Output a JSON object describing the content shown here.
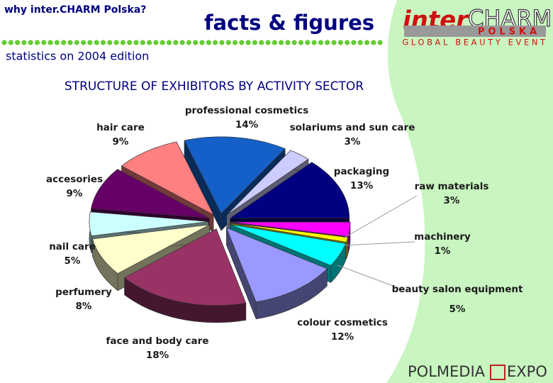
{
  "header": {
    "kicker": "why inter.CHARM Polska?",
    "title": "facts & figures",
    "note": "statistics on 2004 edition"
  },
  "logo": {
    "brand_left": "inter",
    "brand_right": "CHARM",
    "country": "POLSKA",
    "tagline": "GLOBAL BEAUTY EVENT"
  },
  "footer": {
    "left": "POLMEDIA",
    "right": "EXPO"
  },
  "chart_data": {
    "type": "pie",
    "title": "STRUCTURE OF EXHIBITORS BY ACTIVITY SECTOR",
    "categories": [
      "professional cosmetics",
      "solariums and sun care",
      "packaging",
      "raw materials",
      "machinery",
      "beauty salon equipment",
      "colour cosmetics",
      "face and body care",
      "perfumery",
      "nail care",
      "accesories",
      "hair care"
    ],
    "values": [
      14,
      3,
      13,
      3,
      1,
      5,
      12,
      18,
      8,
      5,
      9,
      9
    ],
    "value_labels": [
      "14%",
      "3%",
      "13%",
      "3%",
      "1%",
      "5%",
      "12%",
      "18%",
      "8%",
      "5%",
      "9%",
      "9%"
    ],
    "colors": [
      "#1560c8",
      "#ccccff",
      "#000080",
      "#ff00ff",
      "#ffff00",
      "#00ffff",
      "#9999ff",
      "#993366",
      "#ffffcc",
      "#ccffff",
      "#660066",
      "#ff8080"
    ]
  }
}
